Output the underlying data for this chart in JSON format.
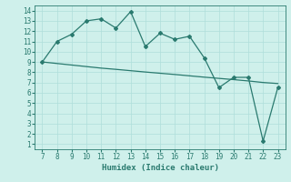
{
  "x": [
    7,
    8,
    9,
    10,
    11,
    12,
    13,
    14,
    15,
    16,
    17,
    18,
    19,
    20,
    21,
    22,
    23
  ],
  "y_main": [
    9,
    11,
    11.7,
    13,
    13.2,
    12.3,
    13.9,
    10.5,
    11.8,
    11.2,
    11.5,
    9.4,
    6.5,
    7.5,
    7.5,
    1.3,
    6.5
  ],
  "y_trend": [
    9.0,
    8.85,
    8.7,
    8.55,
    8.4,
    8.28,
    8.15,
    8.02,
    7.9,
    7.78,
    7.65,
    7.52,
    7.4,
    7.28,
    7.15,
    7.0,
    6.9
  ],
  "x_ticks": [
    7,
    8,
    9,
    10,
    11,
    12,
    13,
    14,
    15,
    16,
    17,
    18,
    19,
    20,
    21,
    22,
    23
  ],
  "y_ticks": [
    1,
    2,
    3,
    4,
    5,
    6,
    7,
    8,
    9,
    10,
    11,
    12,
    13,
    14
  ],
  "xlabel": "Humidex (Indice chaleur)",
  "xlim": [
    6.5,
    23.5
  ],
  "ylim": [
    0.5,
    14.5
  ],
  "line_color": "#2a7a6f",
  "bg_color": "#cff0eb",
  "grid_color": "#aededa",
  "marker": "D",
  "marker_size": 2,
  "line_width": 0.9,
  "tick_fontsize": 5.5,
  "xlabel_fontsize": 6.5
}
